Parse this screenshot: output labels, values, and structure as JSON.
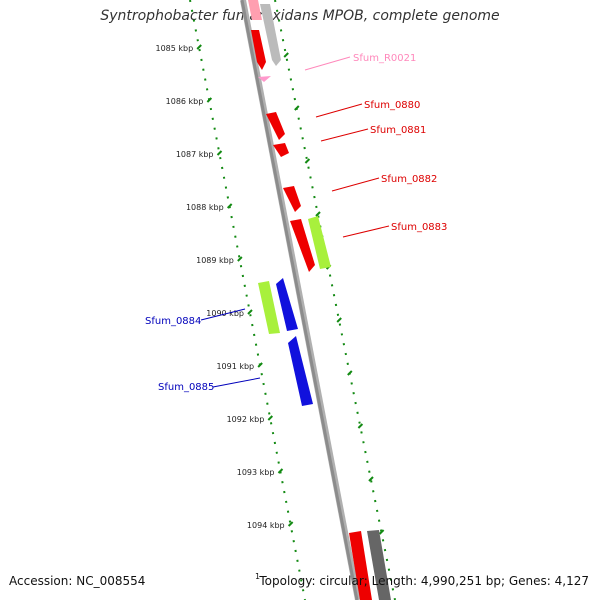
{
  "title": "Syntrophobacter fumaroxidans MPOB, complete genome",
  "accession": "Accession: NC_008554",
  "stats": "Topology: circular; Length: 4,990,251 bp; Genes: 4,127",
  "bottom_marker": "1",
  "colors": {
    "backbone": "#8c8c8c",
    "ticks": "#138a13",
    "gene_red": "#ee0000",
    "gene_green": "#a8f03c",
    "gene_blue": "#1111dd",
    "gene_grey": "#aaaaaa",
    "rna_pink": "#ff99cc",
    "label_red": "#dd0000",
    "label_blue": "#0000bb",
    "label_pink": "#ff88bb"
  },
  "kbp_labels": [
    {
      "text": "1085 kbp",
      "kbp": 1085
    },
    {
      "text": "1086 kbp",
      "kbp": 1086
    },
    {
      "text": "1087 kbp",
      "kbp": 1087
    },
    {
      "text": "1088 kbp",
      "kbp": 1088
    },
    {
      "text": "1089 kbp",
      "kbp": 1089
    },
    {
      "text": "1090 kbp",
      "kbp": 1090
    },
    {
      "text": "1091 kbp",
      "kbp": 1091
    },
    {
      "text": "1092 kbp",
      "kbp": 1092
    },
    {
      "text": "1093 kbp",
      "kbp": 1093
    },
    {
      "text": "1094 kbp",
      "kbp": 1094
    }
  ],
  "gene_labels": [
    {
      "text": "Sfum_R0021",
      "color": "pink"
    },
    {
      "text": "Sfum_0880",
      "color": "red"
    },
    {
      "text": "Sfum_0881",
      "color": "red"
    },
    {
      "text": "Sfum_0882",
      "color": "red"
    },
    {
      "text": "Sfum_0883",
      "color": "red"
    },
    {
      "text": "Sfum_0884",
      "color": "blue"
    },
    {
      "text": "Sfum_0885",
      "color": "blue"
    }
  ]
}
